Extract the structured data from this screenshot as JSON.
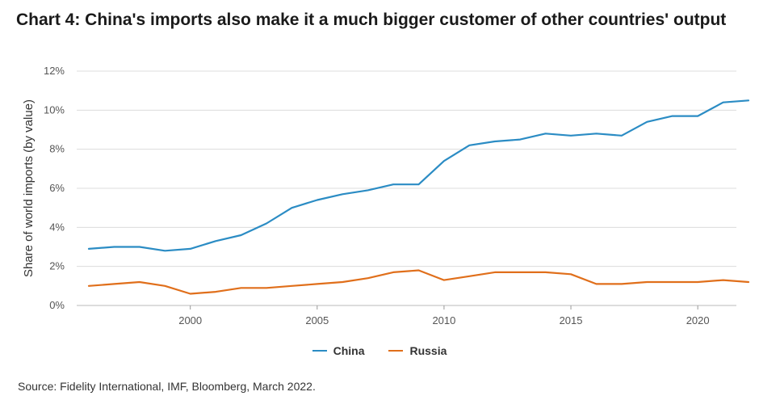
{
  "title": "Chart 4: China's imports also make it a much bigger customer of other countries' output",
  "source": "Source: Fidelity International, IMF, Bloomberg, March 2022.",
  "chart_data": {
    "type": "line",
    "title": "Chart 4: China's imports also make it a much bigger customer of other countries' output",
    "xlabel": "",
    "ylabel": "Share of world imports (by value)",
    "x": [
      1996,
      1997,
      1998,
      1999,
      2000,
      2001,
      2002,
      2003,
      2004,
      2005,
      2006,
      2007,
      2008,
      2009,
      2010,
      2011,
      2012,
      2013,
      2014,
      2015,
      2016,
      2017,
      2018,
      2019,
      2020,
      2021,
      2022
    ],
    "xlim": [
      1996,
      2022
    ],
    "xticks": [
      2000,
      2005,
      2010,
      2015,
      2020
    ],
    "ylim": [
      0,
      12
    ],
    "yticks": [
      0,
      2,
      4,
      6,
      8,
      10,
      12
    ],
    "ytick_labels": [
      "0%",
      "2%",
      "4%",
      "6%",
      "8%",
      "10%",
      "12%"
    ],
    "grid": "horizontal",
    "legend_position": "bottom",
    "series": [
      {
        "name": "China",
        "color": "#2b8cc4",
        "values": [
          2.9,
          3.0,
          3.0,
          2.8,
          2.9,
          3.3,
          3.6,
          4.2,
          5.0,
          5.4,
          5.7,
          5.9,
          6.2,
          6.2,
          7.4,
          8.2,
          8.4,
          8.5,
          8.8,
          8.7,
          8.8,
          8.7,
          9.4,
          9.7,
          9.7,
          10.4,
          10.5
        ]
      },
      {
        "name": "Russia",
        "color": "#e06f1b",
        "values": [
          1.0,
          1.1,
          1.2,
          1.0,
          0.6,
          0.7,
          0.9,
          0.9,
          1.0,
          1.1,
          1.2,
          1.4,
          1.7,
          1.8,
          1.3,
          1.5,
          1.7,
          1.7,
          1.7,
          1.6,
          1.1,
          1.1,
          1.2,
          1.2,
          1.2,
          1.3,
          1.2
        ]
      }
    ]
  }
}
